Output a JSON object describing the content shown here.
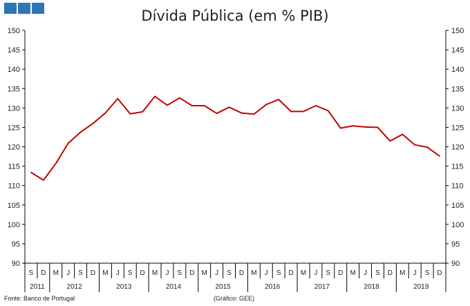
{
  "header_blocks": [
    "blue-square",
    "blue-square",
    "blue-square"
  ],
  "colors": {
    "line": "#c00000",
    "accent": "#2e75b6",
    "axis": "#000000"
  },
  "source_note": "Fonte: Banco de Portugal",
  "graph_note": "(Gráfico: GEE)",
  "chart_data": {
    "type": "line",
    "title": "Dívida Pública (em % PIB)",
    "ylim": [
      90,
      150
    ],
    "ystep": 5,
    "y_ticks": [
      "90",
      "95",
      "100",
      "105",
      "110",
      "115",
      "120",
      "125",
      "130",
      "135",
      "140",
      "145",
      "150"
    ],
    "y_axis_sides": [
      "left",
      "right"
    ],
    "grid": false,
    "x_labels": [
      "S",
      "D",
      "M",
      "J",
      "S",
      "D",
      "M",
      "J",
      "S",
      "D",
      "M",
      "J",
      "S",
      "D",
      "M",
      "J",
      "S",
      "D",
      "M",
      "J",
      "S",
      "D",
      "M",
      "J",
      "S",
      "D",
      "M",
      "J",
      "S",
      "D",
      "M",
      "J",
      "S",
      "D"
    ],
    "years": [
      {
        "label": "2011",
        "start": 0,
        "end": 1
      },
      {
        "label": "2012",
        "start": 2,
        "end": 5
      },
      {
        "label": "2013",
        "start": 6,
        "end": 9
      },
      {
        "label": "2014",
        "start": 10,
        "end": 13
      },
      {
        "label": "2015",
        "start": 14,
        "end": 17
      },
      {
        "label": "2016",
        "start": 18,
        "end": 21
      },
      {
        "label": "2017",
        "start": 22,
        "end": 25
      },
      {
        "label": "2018",
        "start": 26,
        "end": 29
      },
      {
        "label": "2019",
        "start": 30,
        "end": 33
      }
    ],
    "series": [
      {
        "name": "Dívida Pública (% PIB)",
        "values": [
          113.4,
          111.4,
          115.7,
          120.9,
          123.8,
          126.0,
          128.7,
          132.4,
          128.5,
          129.0,
          133.0,
          130.7,
          132.6,
          130.6,
          130.6,
          128.6,
          130.2,
          128.7,
          128.4,
          130.9,
          132.2,
          129.1,
          129.1,
          130.6,
          129.3,
          124.8,
          125.4,
          125.1,
          125.0,
          121.5,
          123.2,
          120.5,
          119.9,
          117.6
        ]
      }
    ]
  }
}
